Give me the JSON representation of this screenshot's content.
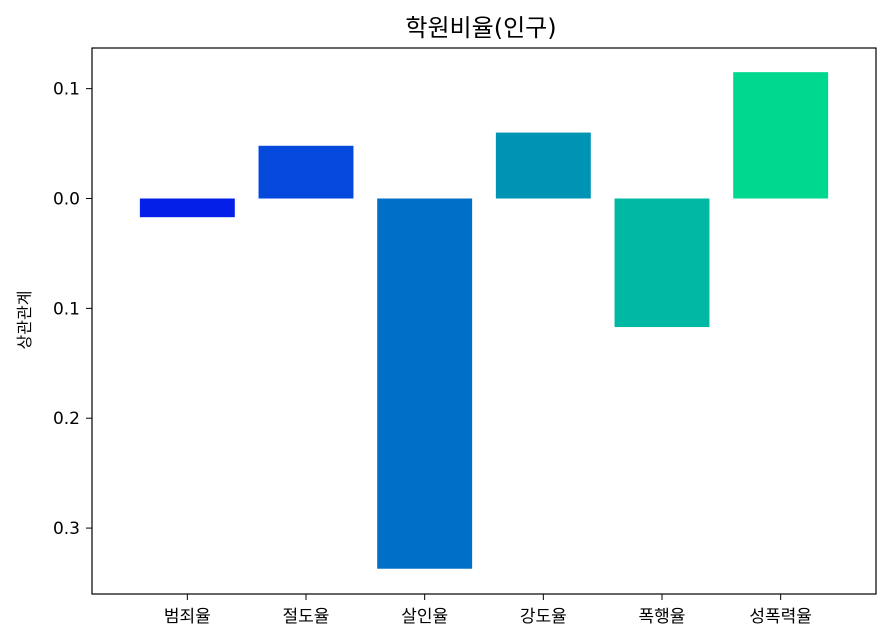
{
  "chart_data": {
    "type": "bar",
    "title": "학원비율(인구)",
    "xlabel": "",
    "ylabel": "상관관계",
    "categories": [
      "범죄율",
      "절도율",
      "살인율",
      "강도율",
      "폭행율",
      "성폭력율"
    ],
    "values": [
      -0.017,
      0.048,
      -0.337,
      0.06,
      -0.117,
      0.115
    ],
    "colors": [
      "#0420e8",
      "#0449dc",
      "#006fc8",
      "#0094b4",
      "#00b8a4",
      "#00d890"
    ],
    "ylim": [
      -0.36,
      0.137
    ],
    "yticks": [
      0.1,
      0.0,
      -0.1,
      -0.2,
      -0.3
    ],
    "ytick_labels": [
      "0.1",
      "0.0",
      "0.1",
      "0.2",
      "0.3"
    ],
    "grid": false,
    "legend": "none"
  }
}
